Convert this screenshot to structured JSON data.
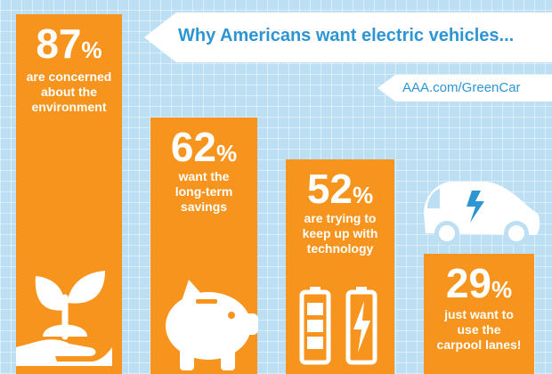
{
  "banner": {
    "title": "Why Americans want electric vehicles..."
  },
  "tag": {
    "text": "AAA.com/GreenCar"
  },
  "colors": {
    "bar": "#f7941d",
    "background": "#bcdff3",
    "accent_text": "#2e95d3",
    "white": "#ffffff"
  },
  "chart_data": {
    "type": "bar",
    "title": "Why Americans want electric vehicles...",
    "categories": [
      "are concerned about the environment",
      "want the long-term savings",
      "are trying to keep up with technology",
      "just want to use the carpool lanes!"
    ],
    "values": [
      87,
      62,
      52,
      29
    ],
    "unit": "%",
    "ylim": [
      0,
      100
    ],
    "grid": false,
    "icons": [
      "plant-in-hand-icon",
      "piggy-bank-icon",
      "battery-charging-icon",
      "electric-car-icon"
    ]
  },
  "bars": [
    {
      "value": "87",
      "unit": "%",
      "lines": [
        "are concerned",
        "about the",
        "environment"
      ]
    },
    {
      "value": "62",
      "unit": "%",
      "lines": [
        "want the",
        "long-term",
        "savings"
      ]
    },
    {
      "value": "52",
      "unit": "%",
      "lines": [
        "are trying to",
        "keep up with",
        "technology"
      ]
    },
    {
      "value": "29",
      "unit": "%",
      "lines": [
        "just want to",
        "use the",
        "carpool lanes!"
      ]
    }
  ]
}
